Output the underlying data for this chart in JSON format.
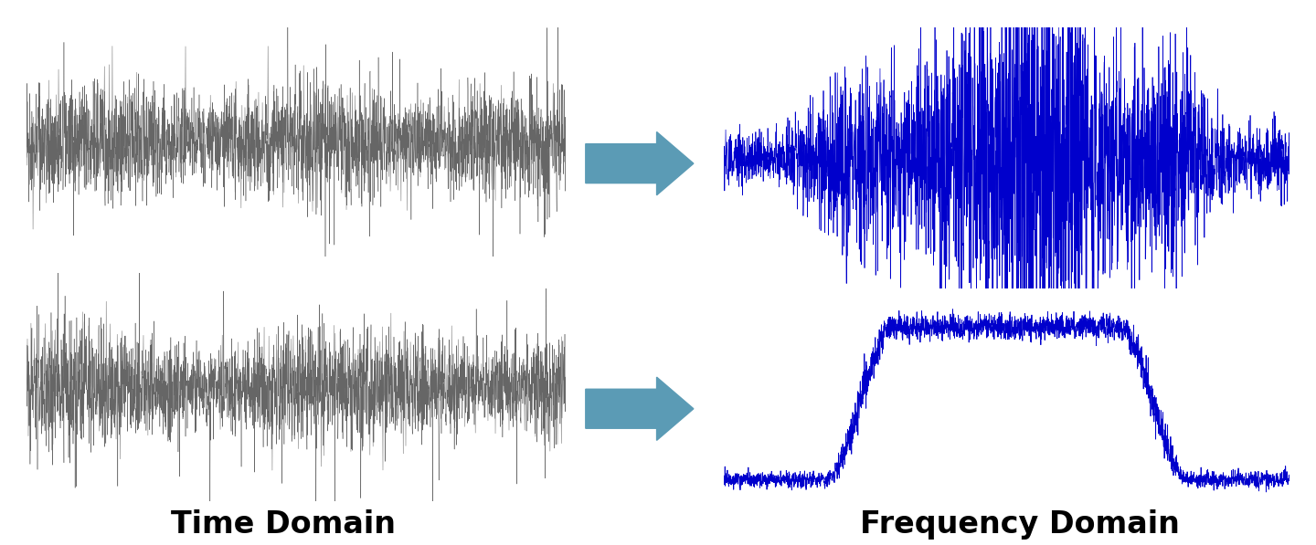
{
  "title_time": "Time Domain",
  "title_freq": "Frequency Domain",
  "title_fontsize": 24,
  "title_fontweight": "bold",
  "bg_color": "#ffffff",
  "time_signal_color": "#555555",
  "freq_signal_color": "#0000cc",
  "arrow_color": "#5b9bb5",
  "seed": 42,
  "n_samples": 3000
}
